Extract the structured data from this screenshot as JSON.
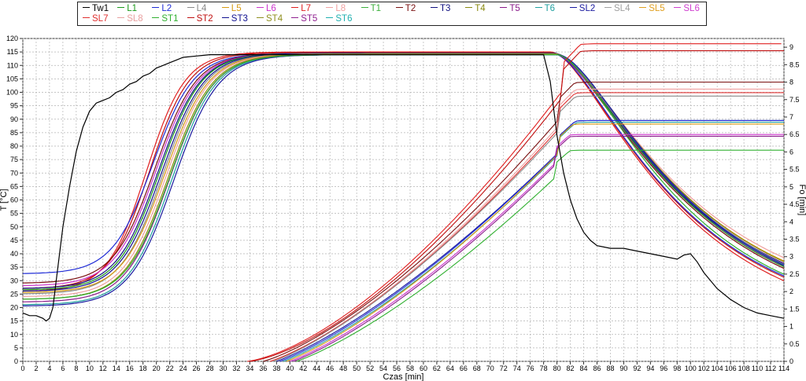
{
  "chart_data": {
    "type": "line",
    "xlabel": "Czas [min]",
    "ylabel": "T [°C]",
    "y2label": "Fo [min]",
    "xlim": [
      0,
      114
    ],
    "ylim": [
      0,
      120
    ],
    "y2lim": [
      0,
      9.25
    ],
    "x_ticks": [
      0,
      2,
      4,
      6,
      8,
      10,
      12,
      14,
      16,
      18,
      20,
      22,
      24,
      26,
      28,
      30,
      32,
      34,
      36,
      38,
      40,
      42,
      44,
      46,
      48,
      50,
      52,
      54,
      56,
      58,
      60,
      62,
      64,
      66,
      68,
      70,
      72,
      74,
      76,
      78,
      80,
      82,
      84,
      86,
      88,
      90,
      92,
      94,
      96,
      98,
      100,
      102,
      104,
      106,
      108,
      110,
      112,
      114
    ],
    "y_ticks": [
      0,
      5,
      10,
      15,
      20,
      25,
      30,
      35,
      40,
      45,
      50,
      55,
      60,
      65,
      70,
      75,
      80,
      85,
      90,
      95,
      100,
      105,
      110,
      115,
      120
    ],
    "y2_ticks": [
      0,
      0.5,
      1,
      1.5,
      2,
      2.5,
      3,
      3.5,
      4,
      4.5,
      5,
      5.5,
      6,
      6.5,
      7,
      7.5,
      8,
      8.5,
      9
    ],
    "grid": true,
    "legend_position": "top",
    "legend": [
      {
        "name": "Tw1",
        "color": "#000000"
      },
      {
        "name": "L1",
        "color": "#1a9a1a"
      },
      {
        "name": "L2",
        "color": "#1f2bd6"
      },
      {
        "name": "L4",
        "color": "#8a8a8a"
      },
      {
        "name": "L5",
        "color": "#d89a10"
      },
      {
        "name": "L6",
        "color": "#cc33cc"
      },
      {
        "name": "L7",
        "color": "#e02020"
      },
      {
        "name": "L8",
        "color": "#f0a0a0"
      },
      {
        "name": "T1",
        "color": "#3cb03c"
      },
      {
        "name": "T2",
        "color": "#7a1010"
      },
      {
        "name": "T3",
        "color": "#101080"
      },
      {
        "name": "T4",
        "color": "#8a8a10"
      },
      {
        "name": "T5",
        "color": "#8a1a8a"
      },
      {
        "name": "T6",
        "color": "#20a0a0"
      },
      {
        "name": "SL2",
        "color": "#1a1aa0"
      },
      {
        "name": "SL4",
        "color": "#a0a0a0"
      },
      {
        "name": "SL5",
        "color": "#e0a020"
      },
      {
        "name": "SL6",
        "color": "#d040d0"
      },
      {
        "name": "SL7",
        "color": "#e03030"
      },
      {
        "name": "SL8",
        "color": "#e8a0a0"
      },
      {
        "name": "ST1",
        "color": "#30b030"
      },
      {
        "name": "ST2",
        "color": "#c01010"
      },
      {
        "name": "ST3",
        "color": "#101090"
      },
      {
        "name": "ST4",
        "color": "#909020"
      },
      {
        "name": "ST5",
        "color": "#902090"
      },
      {
        "name": "ST6",
        "color": "#20b0b0"
      }
    ],
    "series_tw1": {
      "name": "Tw1",
      "x": [
        0,
        1,
        2,
        3,
        3.5,
        4,
        4.5,
        5,
        6,
        7,
        8,
        9,
        10,
        11,
        12,
        13,
        14,
        15,
        16,
        17,
        18,
        19,
        20,
        21,
        22,
        23,
        24,
        26,
        28,
        30,
        35,
        40,
        50,
        60,
        70,
        78,
        79,
        80,
        81,
        82,
        83,
        84,
        85,
        86,
        88,
        90,
        92,
        94,
        96,
        98,
        99,
        100,
        101,
        102,
        104,
        106,
        108,
        110,
        112,
        114
      ],
      "y": [
        18,
        17,
        17,
        16,
        15,
        16,
        20,
        30,
        50,
        65,
        78,
        87,
        93,
        96,
        97,
        98,
        100,
        101,
        103,
        104,
        106,
        107,
        109,
        110,
        111,
        112,
        113,
        113.5,
        114,
        114,
        114,
        114,
        114,
        114,
        114,
        114,
        104,
        84,
        70,
        60,
        53,
        48,
        45,
        43,
        42,
        42,
        41,
        40,
        39,
        38,
        39.5,
        40,
        37,
        33,
        27,
        23,
        20,
        18,
        17,
        16
      ]
    },
    "temperature_series": [
      {
        "name": "L7",
        "color": "#e02020",
        "start": 26,
        "x_mid": 18.5,
        "spread": 6.5,
        "plateau": 115,
        "end": 22.5
      },
      {
        "name": "ST2",
        "color": "#c01010",
        "start": 27,
        "x_mid": 19,
        "spread": 6.6,
        "plateau": 114.8,
        "end": 24
      },
      {
        "name": "L2",
        "color": "#1f2bd6",
        "start": 32.5,
        "x_mid": 19.5,
        "spread": 6.8,
        "plateau": 114.5,
        "end": 24.5
      },
      {
        "name": "T2",
        "color": "#7a1010",
        "start": 29,
        "x_mid": 19.8,
        "spread": 6.9,
        "plateau": 114.5,
        "end": 25
      },
      {
        "name": "L6",
        "color": "#cc33cc",
        "start": 28,
        "x_mid": 20,
        "spread": 7,
        "plateau": 114.5,
        "end": 26
      },
      {
        "name": "T3",
        "color": "#101080",
        "start": 27,
        "x_mid": 20.3,
        "spread": 7,
        "plateau": 114.5,
        "end": 26.5
      },
      {
        "name": "L1",
        "color": "#1a9a1a",
        "start": 26.5,
        "x_mid": 20.5,
        "spread": 7,
        "plateau": 114.5,
        "end": 25.5
      },
      {
        "name": "ST3",
        "color": "#101090",
        "start": 26,
        "x_mid": 20.8,
        "spread": 7.1,
        "plateau": 114.5,
        "end": 27
      },
      {
        "name": "L4",
        "color": "#8a8a8a",
        "start": 25,
        "x_mid": 21,
        "spread": 7.1,
        "plateau": 114.3,
        "end": 28
      },
      {
        "name": "L5",
        "color": "#d89a10",
        "start": 25.5,
        "x_mid": 21.3,
        "spread": 7.2,
        "plateau": 114.3,
        "end": 28
      },
      {
        "name": "L8",
        "color": "#f0a0a0",
        "start": 24,
        "x_mid": 21.5,
        "spread": 7.2,
        "plateau": 114.2,
        "end": 29.5
      },
      {
        "name": "T4",
        "color": "#8a8a10",
        "start": 23,
        "x_mid": 21.8,
        "spread": 7.3,
        "plateau": 114.2,
        "end": 27.5
      },
      {
        "name": "T5",
        "color": "#8a1a8a",
        "start": 22,
        "x_mid": 22,
        "spread": 7.3,
        "plateau": 114,
        "end": 26.5
      },
      {
        "name": "T6",
        "color": "#20a0a0",
        "start": 21,
        "x_mid": 22.3,
        "spread": 7.3,
        "plateau": 114,
        "end": 26
      },
      {
        "name": "SL2",
        "color": "#1a1aa0",
        "start": 20.5,
        "x_mid": 22.6,
        "spread": 7.4,
        "plateau": 114,
        "end": 25.5
      },
      {
        "name": "ST1",
        "color": "#30b030",
        "start": 23,
        "x_mid": 22,
        "spread": 7.3,
        "plateau": 114,
        "end": 24.5
      }
    ],
    "fo_series": [
      {
        "name": "L7",
        "color": "#e02020",
        "x_start": 33.6,
        "x_end": 86,
        "y_end": 9.1,
        "curve": 0.9
      },
      {
        "name": "ST2",
        "color": "#c01010",
        "x_start": 34,
        "x_end": 86,
        "y_end": 8.9,
        "curve": 0.9
      },
      {
        "name": "T2",
        "color": "#7a1010",
        "x_start": 36,
        "x_end": 85,
        "y_end": 8,
        "curve": 0.7
      },
      {
        "name": "L8",
        "color": "#f0a0a0",
        "x_start": 37,
        "x_end": 85,
        "y_end": 7.8,
        "curve": 0.65
      },
      {
        "name": "SL7",
        "color": "#e03030",
        "x_start": 37,
        "x_end": 85,
        "y_end": 7.7,
        "curve": 0.65
      },
      {
        "name": "L4",
        "color": "#8a8a8a",
        "x_start": 37.5,
        "x_end": 85,
        "y_end": 7.6,
        "curve": 0.6
      },
      {
        "name": "SL2",
        "color": "#1a1aa0",
        "x_start": 38,
        "x_end": 85,
        "y_end": 6.9,
        "curve": 0.55
      },
      {
        "name": "L2",
        "color": "#1f2bd6",
        "x_start": 38.5,
        "x_end": 85,
        "y_end": 6.9,
        "curve": 0.55
      },
      {
        "name": "T6",
        "color": "#20a0a0",
        "x_start": 39,
        "x_end": 85,
        "y_end": 6.85,
        "curve": 0.55
      },
      {
        "name": "L5",
        "color": "#d89a10",
        "x_start": 39.5,
        "x_end": 84.5,
        "y_end": 6.8,
        "curve": 0.55
      },
      {
        "name": "L6",
        "color": "#cc33cc",
        "x_start": 40,
        "x_end": 84,
        "y_end": 6.5,
        "curve": 0.55
      },
      {
        "name": "T5",
        "color": "#8a1a8a",
        "x_start": 40.5,
        "x_end": 84,
        "y_end": 6.45,
        "curve": 0.55
      },
      {
        "name": "ST1",
        "color": "#30b030",
        "x_start": 41,
        "x_end": 84,
        "y_end": 6.05,
        "curve": 0.55
      }
    ]
  }
}
